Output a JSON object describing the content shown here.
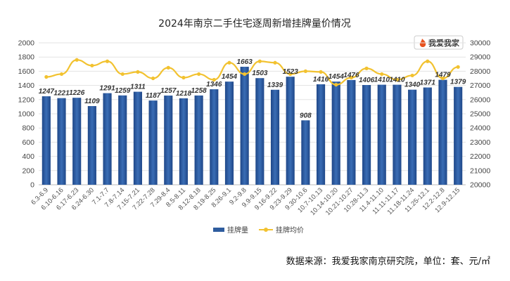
{
  "chart_data": {
    "type": "bar",
    "title": "2024年南京二手住宅逐周新增挂牌量价情况",
    "categories": [
      "6.3-6.9",
      "6.10-6.16",
      "6.17-6.23",
      "6.24-6.30",
      "7.1-7.7",
      "7.8-7.14",
      "7.15-7.21",
      "7.22-7.28",
      "7.29-8.4",
      "8.5-8.11",
      "8.12-8.18",
      "8.19-8.25",
      "8.26-9.1",
      "9.2-9.8",
      "9.9-9.15",
      "9.16-9.22",
      "9.23-9.29",
      "9.30-10.6",
      "10.7-10.13",
      "10.14-10.20",
      "10.21-10.27",
      "10.28-11.3",
      "11.4-11.10",
      "11.11-11.17",
      "11.18-11.24",
      "11.25-12.1",
      "12.2-12.8",
      "12.9-12.15"
    ],
    "series": [
      {
        "name": "挂牌量",
        "type": "bar",
        "axis": "left",
        "color": "#2E5C9E",
        "values": [
          1247,
          1221,
          1226,
          1109,
          1291,
          1259,
          1311,
          1187,
          1257,
          1218,
          1258,
          1346,
          1454,
          1663,
          1503,
          1339,
          1523,
          908,
          1416,
          1454,
          1476,
          1406,
          1410,
          1410,
          1340,
          1371,
          1479,
          1379
        ]
      },
      {
        "name": "挂牌均价",
        "type": "line",
        "axis": "right",
        "color": "#F2C230",
        "values": [
          27600,
          27800,
          28800,
          28400,
          28700,
          27800,
          27950,
          27500,
          28250,
          27550,
          27800,
          27400,
          28600,
          27800,
          28700,
          28600,
          27800,
          28000,
          27950,
          27050,
          27550,
          28200,
          27800,
          27400,
          27700,
          28700,
          27500,
          28300
        ]
      }
    ],
    "yleft": {
      "min": 0,
      "max": 2000,
      "ticks": [
        0,
        200,
        400,
        600,
        800,
        1000,
        1200,
        1400,
        1600,
        1800,
        2000
      ]
    },
    "yright": {
      "min": 20000,
      "max": 30000,
      "ticks": [
        20000,
        21000,
        22000,
        23000,
        24000,
        25000,
        26000,
        27000,
        28000,
        29000,
        30000
      ]
    },
    "legend": [
      "挂牌量",
      "挂牌均价"
    ],
    "legend_position": "bottom",
    "grid": true,
    "source": "数据来源：我爱我家南京研究院，单位：套、元/㎡"
  },
  "logo": {
    "text": "我爱我家",
    "icon": "flame-logo-icon",
    "color": "#E8521E"
  }
}
